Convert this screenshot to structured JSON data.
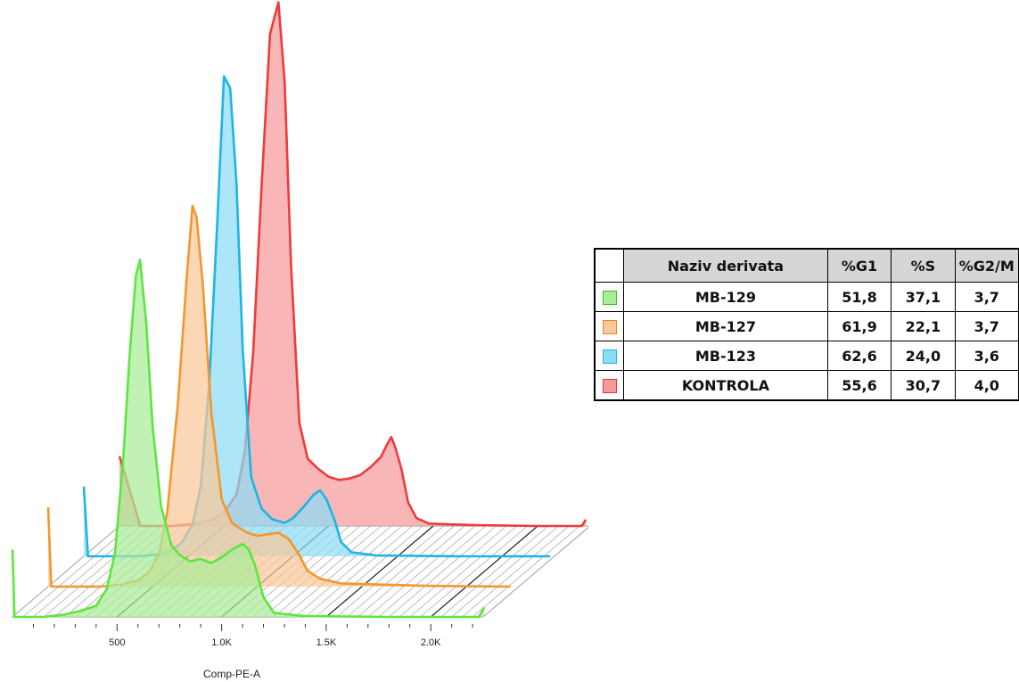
{
  "chart_data": {
    "type": "area",
    "style": "3d-offset-histogram-overlay",
    "xlabel": "Comp-PE-A",
    "x_ticks": [
      "500",
      "1.0K",
      "1.5K",
      "2.0K"
    ],
    "x_tick_values": [
      500,
      1000,
      1500,
      2000
    ],
    "xlim": [
      0,
      2250
    ],
    "grid": "diagonal-floor",
    "series": [
      {
        "name": "KONTROLA",
        "color": "#ee3b3b",
        "fill": "#f59a9a",
        "points": [
          [
            0,
            88
          ],
          [
            100,
            0
          ],
          [
            150,
            0
          ],
          [
            250,
            0
          ],
          [
            380,
            3
          ],
          [
            450,
            9
          ],
          [
            500,
            17
          ],
          [
            560,
            40
          ],
          [
            600,
            95
          ],
          [
            640,
            220
          ],
          [
            680,
            430
          ],
          [
            720,
            620
          ],
          [
            760,
            660
          ],
          [
            790,
            560
          ],
          [
            820,
            330
          ],
          [
            860,
            130
          ],
          [
            900,
            85
          ],
          [
            950,
            72
          ],
          [
            1000,
            62
          ],
          [
            1050,
            58
          ],
          [
            1100,
            60
          ],
          [
            1150,
            64
          ],
          [
            1200,
            74
          ],
          [
            1250,
            87
          ],
          [
            1280,
            103
          ],
          [
            1300,
            112
          ],
          [
            1320,
            98
          ],
          [
            1350,
            70
          ],
          [
            1380,
            30
          ],
          [
            1420,
            10
          ],
          [
            1480,
            3
          ],
          [
            1700,
            1
          ],
          [
            2000,
            0
          ],
          [
            2210,
            0
          ],
          [
            2230,
            8
          ]
        ]
      },
      {
        "name": "MB-123",
        "color": "#1eb4e6",
        "fill": "#8ddcf5",
        "points": [
          [
            0,
            88
          ],
          [
            20,
            0
          ],
          [
            100,
            0
          ],
          [
            250,
            0
          ],
          [
            350,
            2
          ],
          [
            420,
            8
          ],
          [
            470,
            18
          ],
          [
            520,
            40
          ],
          [
            560,
            90
          ],
          [
            600,
            220
          ],
          [
            640,
            430
          ],
          [
            670,
            605
          ],
          [
            700,
            590
          ],
          [
            730,
            470
          ],
          [
            760,
            260
          ],
          [
            800,
            100
          ],
          [
            850,
            60
          ],
          [
            900,
            47
          ],
          [
            960,
            42
          ],
          [
            1000,
            48
          ],
          [
            1050,
            62
          ],
          [
            1100,
            78
          ],
          [
            1130,
            83
          ],
          [
            1160,
            72
          ],
          [
            1200,
            45
          ],
          [
            1230,
            18
          ],
          [
            1280,
            5
          ],
          [
            1400,
            1
          ],
          [
            1800,
            0
          ],
          [
            2230,
            0
          ]
        ]
      },
      {
        "name": "MB-127",
        "color": "#f2972e",
        "fill": "#f9c898",
        "points": [
          [
            0,
            100
          ],
          [
            15,
            0
          ],
          [
            100,
            0
          ],
          [
            250,
            0
          ],
          [
            360,
            3
          ],
          [
            430,
            8
          ],
          [
            480,
            18
          ],
          [
            530,
            40
          ],
          [
            570,
            95
          ],
          [
            620,
            230
          ],
          [
            660,
            380
          ],
          [
            690,
            480
          ],
          [
            710,
            465
          ],
          [
            740,
            380
          ],
          [
            780,
            220
          ],
          [
            830,
            110
          ],
          [
            880,
            80
          ],
          [
            950,
            68
          ],
          [
            1000,
            64
          ],
          [
            1050,
            66
          ],
          [
            1100,
            68
          ],
          [
            1150,
            60
          ],
          [
            1200,
            40
          ],
          [
            1240,
            20
          ],
          [
            1300,
            10
          ],
          [
            1400,
            4
          ],
          [
            1800,
            1
          ],
          [
            2210,
            0
          ]
        ]
      },
      {
        "name": "MB-129",
        "color": "#5ee640",
        "fill": "#a9ec99",
        "points": [
          [
            0,
            85
          ],
          [
            10,
            0
          ],
          [
            150,
            0
          ],
          [
            250,
            3
          ],
          [
            330,
            8
          ],
          [
            400,
            14
          ],
          [
            450,
            35
          ],
          [
            490,
            80
          ],
          [
            530,
            200
          ],
          [
            560,
            330
          ],
          [
            590,
            430
          ],
          [
            610,
            450
          ],
          [
            640,
            370
          ],
          [
            670,
            240
          ],
          [
            710,
            140
          ],
          [
            760,
            90
          ],
          [
            800,
            78
          ],
          [
            850,
            70
          ],
          [
            900,
            73
          ],
          [
            950,
            68
          ],
          [
            1000,
            75
          ],
          [
            1050,
            85
          ],
          [
            1100,
            92
          ],
          [
            1130,
            85
          ],
          [
            1160,
            65
          ],
          [
            1200,
            25
          ],
          [
            1250,
            5
          ],
          [
            1400,
            1
          ],
          [
            1800,
            0
          ],
          [
            2230,
            0
          ],
          [
            2255,
            12
          ]
        ]
      }
    ]
  },
  "table": {
    "headers": [
      "Naziv derivata",
      "%G1",
      "%S",
      "%G2/M"
    ],
    "rows": [
      {
        "name": "MB-129",
        "g1": "51,8",
        "s": "37,1",
        "g2m": "3,7",
        "swatch_border": "#3fbf22",
        "swatch_fill": "#a9ec99"
      },
      {
        "name": "MB-127",
        "g1": "61,9",
        "s": "22,1",
        "g2m": "3,7",
        "swatch_border": "#e08a2a",
        "swatch_fill": "#f9c898"
      },
      {
        "name": "MB-123",
        "g1": "62,6",
        "s": "24,0",
        "g2m": "3,6",
        "swatch_border": "#1eb4e6",
        "swatch_fill": "#8ddcf5"
      },
      {
        "name": "KONTROLA",
        "g1": "55,6",
        "s": "30,7",
        "g2m": "4,0",
        "swatch_border": "#e03a3a",
        "swatch_fill": "#f59a9a"
      }
    ]
  }
}
